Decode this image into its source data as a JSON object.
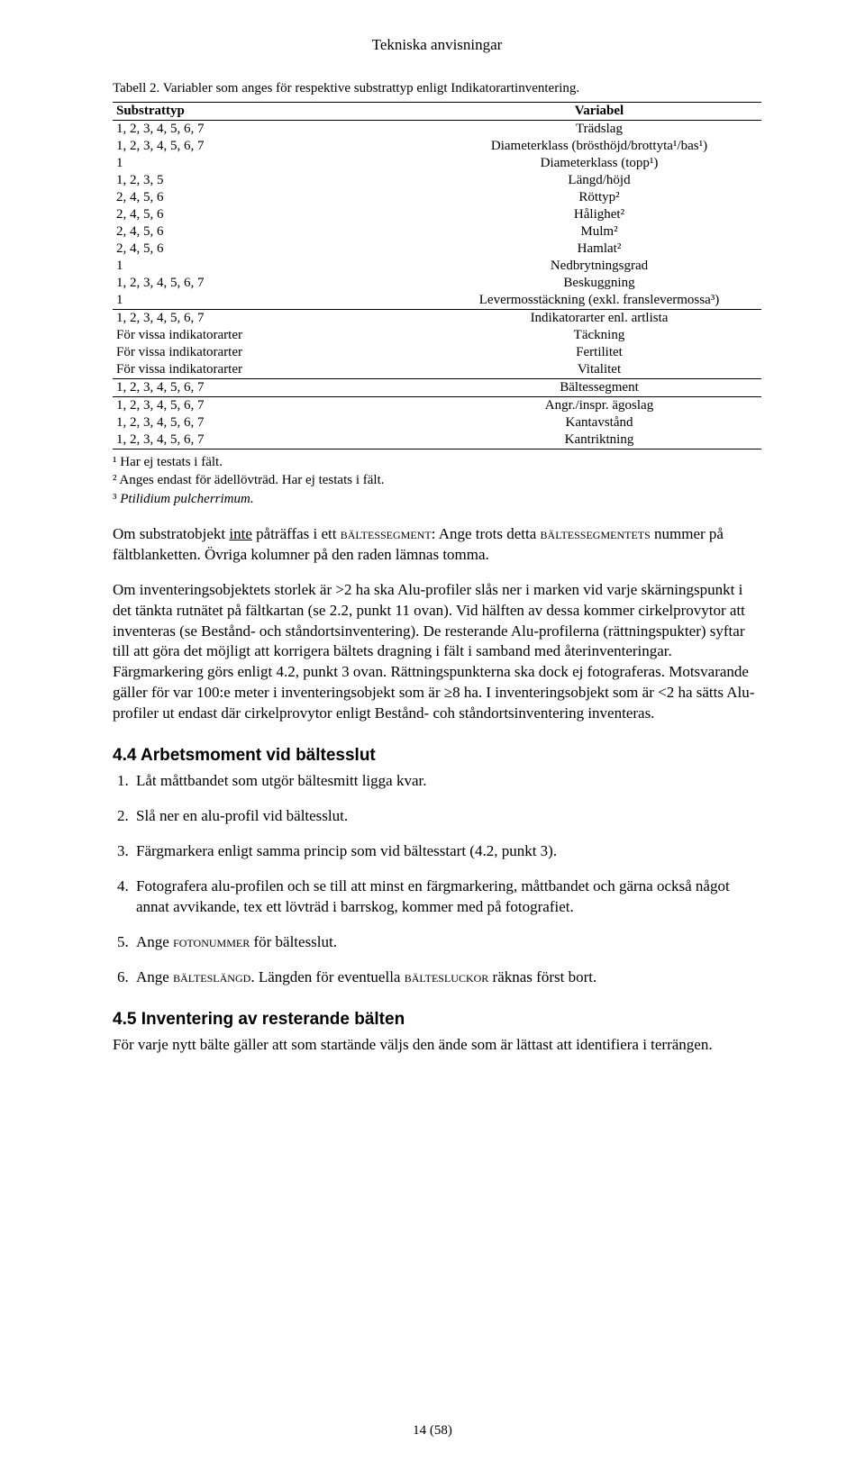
{
  "header": "Tekniska anvisningar",
  "table": {
    "caption": "Tabell 2. Variabler som anges för respektive substrattyp enligt Indikatorartinventering.",
    "col1_label": "Substrattyp",
    "col2_label": "Variabel",
    "rows": [
      {
        "c1": "1, 2, 3, 4, 5, 6, 7",
        "c2": "Trädslag"
      },
      {
        "c1": "1, 2, 3, 4, 5, 6, 7",
        "c2": "Diameterklass (brösthöjd/brottyta¹/bas¹)"
      },
      {
        "c1": "1",
        "c2": "Diameterklass (topp¹)"
      },
      {
        "c1": "1, 2, 3, 5",
        "c2": "Längd/höjd"
      },
      {
        "c1": "2, 4, 5, 6",
        "c2": "Röttyp²"
      },
      {
        "c1": "2, 4, 5, 6",
        "c2": "Hålighet²"
      },
      {
        "c1": "2, 4, 5, 6",
        "c2": "Mulm²"
      },
      {
        "c1": "2, 4, 5, 6",
        "c2": "Hamlat²"
      },
      {
        "c1": "1",
        "c2": "Nedbrytningsgrad"
      },
      {
        "c1": "1, 2, 3, 4, 5, 6, 7",
        "c2": "Beskuggning"
      },
      {
        "c1": "1",
        "c2": "Levermosstäckning (exkl. franslevermossa³)"
      },
      {
        "c1": "1, 2, 3, 4, 5, 6, 7",
        "c2": "Indikatorarter enl. artlista",
        "sep": true
      },
      {
        "c1": "För vissa indikatorarter",
        "c2": "Täckning"
      },
      {
        "c1": "För vissa indikatorarter",
        "c2": "Fertilitet"
      },
      {
        "c1": "För vissa indikatorarter",
        "c2": "Vitalitet"
      },
      {
        "c1": "1, 2, 3, 4, 5, 6, 7",
        "c2": "Bältessegment",
        "sep": true
      },
      {
        "c1": "1, 2, 3, 4, 5, 6, 7",
        "c2": "Angr./inspr. ägoslag",
        "sep": true
      },
      {
        "c1": "1, 2, 3, 4, 5, 6, 7",
        "c2": "Kantavstånd"
      },
      {
        "c1": "1, 2, 3, 4, 5, 6, 7",
        "c2": "Kantriktning",
        "final": true
      }
    ],
    "footnote1": "¹ Har ej testats i fält.",
    "footnote2": "² Anges endast för ädellövträd. Har ej testats i fält.",
    "footnote3_text": "Ptilidium pulcherrimum.",
    "footnote3_prefix": "³ "
  },
  "para1_prefix": "Om substratobjekt ",
  "para1_underline": "inte",
  "para1_mid1": " påträffas i ett ",
  "para1_sc1": "bältessegment",
  "para1_mid2": ": Ange trots detta ",
  "para1_sc2": "bältessegmentets",
  "para1_suffix": " nummer på fältblanketten. Övriga kolumner på den raden lämnas tomma.",
  "para2": "Om inventeringsobjektets storlek är >2 ha ska Alu-profiler slås ner i marken vid varje skärningspunkt i det tänkta rutnätet på fältkartan (se 2.2, punkt 11 ovan). Vid hälften av dessa kommer cirkelprovytor att inventeras (se Bestånd- och ståndortsinventering). De resterande Alu-profilerna (rättningspukter) syftar till att göra det möjligt att korrigera bältets dragning i fält i samband med återinventeringar. Färgmarkering görs enligt 4.2, punkt 3 ovan. Rättningspunkterna ska dock ej fotograferas. Motsvarande gäller för var 100:e meter i inventeringsobjekt som är ≥8 ha. I inventeringsobjekt som är <2 ha sätts Alu-profiler ut endast där cirkelprovytor enligt Bestånd- coh ståndortsinventering inventeras.",
  "section1": {
    "heading": "4.4  Arbetsmoment vid bältesslut",
    "items": [
      "Låt måttbandet som utgör bältesmitt ligga kvar.",
      "Slå ner en alu-profil vid bältesslut.",
      "Färgmarkera enligt samma princip som vid bältesstart (4.2, punkt 3).",
      "Fotografera alu-profilen och se till att minst en färgmarkering, måttbandet och gärna också något annat avvikande, tex ett lövträd i barrskog, kommer med på fotografiet."
    ],
    "item5_prefix": "Ange ",
    "item5_sc": "fotonummer",
    "item5_suffix": " för bältesslut.",
    "item6_prefix": "Ange ",
    "item6_sc1": "bälteslängd",
    "item6_mid": ". Längden för eventuella ",
    "item6_sc2": "bältesluckor",
    "item6_suffix": " räknas först bort."
  },
  "section2": {
    "heading": "4.5  Inventering av resterande bälten",
    "para": "För varje nytt bälte gäller att som startände väljs den ände som är lättast att identifiera i terrängen."
  },
  "footer": "14 (58)"
}
